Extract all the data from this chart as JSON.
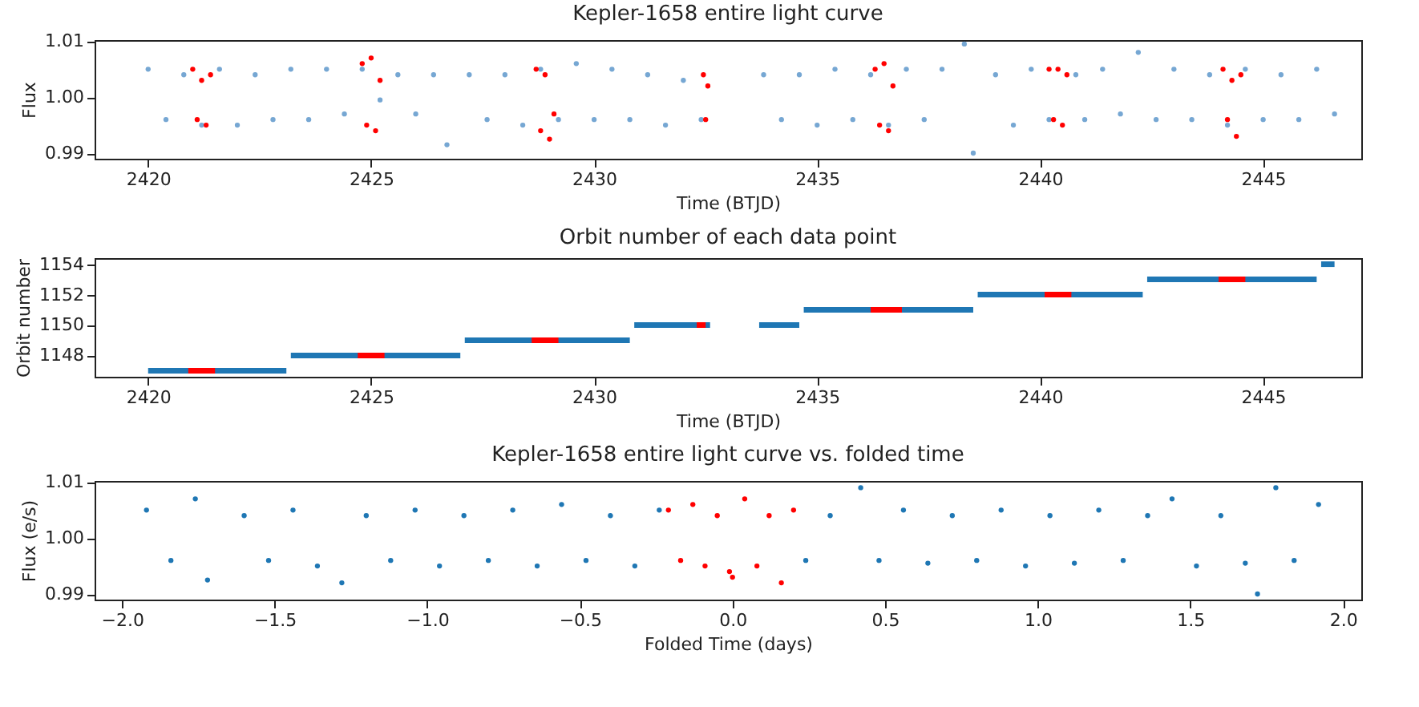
{
  "chart_data": [
    {
      "type": "scatter",
      "title": "Kepler-1658 entire light curve",
      "xlabel": "Time (BTJD)",
      "ylabel": "Flux",
      "xlim": [
        2418.8,
        2447.2
      ],
      "xticks": [
        2420,
        2425,
        2430,
        2435,
        2440,
        2445
      ],
      "ylim": [
        0.989,
        1.0102
      ],
      "yticks": [
        0.99,
        {
          "value": 1.0,
          "label": "1.00"
        },
        1.01
      ],
      "grid": false,
      "marker": "circle",
      "series": [
        {
          "color": "#76a7d3",
          "x": [
            2420.0,
            2420.4,
            2420.8,
            2421.2,
            2421.6,
            2422.0,
            2422.4,
            2422.8,
            2423.2,
            2423.6,
            2424.0,
            2424.4,
            2424.8,
            2425.2,
            2425.6,
            2426.0,
            2426.4,
            2426.7,
            2427.2,
            2427.6,
            2428.0,
            2428.4,
            2428.8,
            2429.2,
            2429.6,
            2430.0,
            2430.4,
            2430.8,
            2431.2,
            2431.6,
            2432.0,
            2432.4,
            2433.8,
            2434.2,
            2434.6,
            2435.0,
            2435.4,
            2435.8,
            2436.2,
            2436.6,
            2437.0,
            2437.4,
            2437.8,
            2438.3,
            2438.5,
            2439.0,
            2439.4,
            2439.8,
            2440.2,
            2440.8,
            2441.0,
            2441.4,
            2441.8,
            2442.2,
            2442.6,
            2443.0,
            2443.4,
            2443.8,
            2444.2,
            2444.6,
            2445.0,
            2445.4,
            2445.8,
            2446.2,
            2446.6
          ],
          "values": [
            1.005,
            0.996,
            1.004,
            0.995,
            1.005,
            0.995,
            1.004,
            0.996,
            1.005,
            0.996,
            1.005,
            0.997,
            1.005,
            0.9995,
            1.004,
            0.997,
            1.004,
            0.9915,
            1.004,
            0.996,
            1.004,
            0.995,
            1.005,
            0.996,
            1.006,
            0.996,
            1.005,
            0.996,
            1.004,
            0.995,
            1.003,
            0.996,
            1.004,
            0.996,
            1.004,
            0.995,
            1.005,
            0.996,
            1.004,
            0.995,
            1.005,
            0.996,
            1.005,
            1.0095,
            0.99,
            1.004,
            0.995,
            1.005,
            0.996,
            1.004,
            0.996,
            1.005,
            0.997,
            1.008,
            0.996,
            1.005,
            0.996,
            1.004,
            0.995,
            1.005,
            0.996,
            1.004,
            0.996,
            1.005,
            0.997
          ]
        },
        {
          "color": "#ff0000",
          "x": [
            2421.0,
            2421.1,
            2421.2,
            2421.3,
            2421.4,
            2424.8,
            2424.9,
            2425.0,
            2425.1,
            2425.2,
            2428.7,
            2428.8,
            2428.9,
            2429.0,
            2429.1,
            2432.45,
            2432.5,
            2432.55,
            2436.3,
            2436.4,
            2436.5,
            2436.6,
            2436.7,
            2440.2,
            2440.3,
            2440.4,
            2440.5,
            2440.6,
            2444.1,
            2444.2,
            2444.3,
            2444.4,
            2444.5
          ],
          "values": [
            1.005,
            0.996,
            1.003,
            0.995,
            1.004,
            1.006,
            0.995,
            1.007,
            0.994,
            1.003,
            1.005,
            0.994,
            1.004,
            0.9925,
            0.997,
            1.004,
            0.996,
            1.002,
            1.005,
            0.995,
            1.006,
            0.994,
            1.002,
            1.005,
            0.996,
            1.005,
            0.995,
            1.004,
            1.005,
            0.996,
            1.003,
            0.993,
            1.004
          ]
        }
      ]
    },
    {
      "type": "line",
      "title": "Orbit number of each data point",
      "xlabel": "Time (BTJD)",
      "ylabel": "Orbit number",
      "xlim": [
        2418.8,
        2447.2
      ],
      "xticks": [
        2420,
        2425,
        2430,
        2435,
        2440,
        2445
      ],
      "ylim": [
        1146.6,
        1154.4
      ],
      "yticks": [
        1148,
        1150,
        1152,
        1154
      ],
      "grid": false,
      "marker": "none",
      "line_style": "solid",
      "series": [
        {
          "color": "#1f77b4",
          "x": [
            2420.0,
            2423.1,
            2423.15,
            2423.2,
            2427.0,
            2427.05,
            2427.1,
            2430.8,
            2430.85,
            2430.9,
            2432.6,
            2433.1,
            2433.7,
            2434.6,
            2434.65,
            2434.7,
            2438.5,
            2438.55,
            2438.6,
            2442.3,
            2442.35,
            2442.4,
            2446.2,
            2446.25,
            2446.3,
            2446.6
          ],
          "values": [
            1147,
            1147,
            null,
            1148,
            1148,
            null,
            1149,
            1149,
            null,
            1150,
            1150,
            null,
            1150,
            1150,
            null,
            1151,
            1151,
            null,
            1152,
            1152,
            null,
            1153,
            1153,
            null,
            1154,
            1154
          ]
        },
        {
          "color": "#ff0000",
          "x": [
            2420.9,
            2421.5,
            2423.0,
            2424.7,
            2425.3,
            2427.0,
            2428.6,
            2429.2,
            2431.0,
            2432.3,
            2432.5,
            2434.0,
            2436.2,
            2436.9,
            2438.0,
            2440.1,
            2440.7,
            2442.0,
            2444.0,
            2444.6
          ],
          "values": [
            1147,
            1147,
            null,
            1148,
            1148,
            null,
            1149,
            1149,
            null,
            1150,
            1150,
            null,
            1151,
            1151,
            null,
            1152,
            1152,
            null,
            1153,
            1153
          ]
        }
      ]
    },
    {
      "type": "scatter",
      "title": "Kepler-1658 entire light curve vs. folded time",
      "xlabel": "Folded Time (days)",
      "ylabel": "Flux (e/s)",
      "xlim": [
        -2.09,
        2.06
      ],
      "xticks": [
        {
          "value": -2.0,
          "label": "−2.0"
        },
        {
          "value": -1.5,
          "label": "−1.5"
        },
        {
          "value": -1.0,
          "label": "−1.0"
        },
        {
          "value": -0.5,
          "label": "−0.5"
        },
        {
          "value": 0.0,
          "label": "0.0"
        },
        {
          "value": 0.5,
          "label": "0.5"
        },
        {
          "value": 1.0,
          "label": "1.0"
        },
        {
          "value": 1.5,
          "label": "1.5"
        },
        {
          "value": 2.0,
          "label": "2.0"
        }
      ],
      "ylim": [
        0.989,
        1.0102
      ],
      "yticks": [
        0.99,
        {
          "value": 1.0,
          "label": "1.00"
        },
        1.01
      ],
      "grid": false,
      "marker": "circle",
      "series": [
        {
          "color": "#1f77b4",
          "x": [
            -1.92,
            -1.84,
            -1.76,
            -1.72,
            -1.6,
            -1.52,
            -1.44,
            -1.36,
            -1.28,
            -1.2,
            -1.12,
            -1.04,
            -0.96,
            -0.88,
            -0.8,
            -0.72,
            -0.64,
            -0.56,
            -0.48,
            -0.4,
            -0.32,
            -0.24,
            0.24,
            0.32,
            0.42,
            0.48,
            0.56,
            0.64,
            0.72,
            0.8,
            0.88,
            0.96,
            1.04,
            1.12,
            1.2,
            1.28,
            1.36,
            1.44,
            1.52,
            1.6,
            1.68,
            1.72,
            1.78,
            1.84,
            1.92
          ],
          "values": [
            1.005,
            0.996,
            1.007,
            0.9925,
            1.004,
            0.996,
            1.005,
            0.995,
            0.992,
            1.004,
            0.996,
            1.005,
            0.995,
            1.004,
            0.996,
            1.005,
            0.995,
            1.006,
            0.996,
            1.004,
            0.995,
            1.005,
            0.996,
            1.004,
            1.009,
            0.996,
            1.005,
            0.9955,
            1.004,
            0.996,
            1.005,
            0.995,
            1.004,
            0.9955,
            1.005,
            0.996,
            1.004,
            1.007,
            0.995,
            1.004,
            0.9955,
            0.99,
            1.009,
            0.996,
            1.006
          ]
        },
        {
          "color": "#ff0000",
          "x": [
            -0.21,
            -0.17,
            -0.13,
            -0.09,
            -0.05,
            -0.01,
            0.0,
            0.04,
            0.08,
            0.12,
            0.16,
            0.2
          ],
          "values": [
            1.005,
            0.996,
            1.006,
            0.995,
            1.004,
            0.994,
            0.993,
            1.007,
            0.995,
            1.004,
            0.992,
            1.005
          ]
        }
      ]
    }
  ]
}
